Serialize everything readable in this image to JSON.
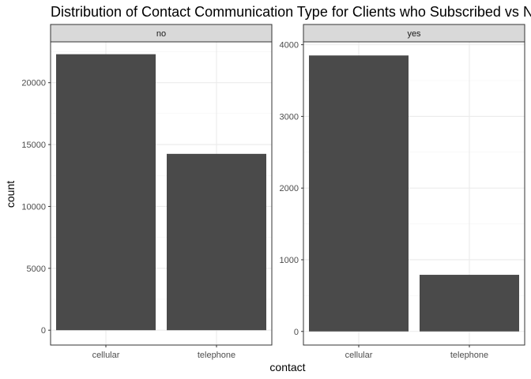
{
  "chart_data": {
    "type": "bar",
    "title": "Distribution of Contact Communication Type for Clients who Subscribed vs No",
    "xlabel": "contact",
    "ylabel": "count",
    "categories": [
      "cellular",
      "telephone"
    ],
    "bar_color": "#4a4a4a",
    "grid": true,
    "facets": [
      {
        "strip": "no",
        "values": [
          22300,
          14250
        ],
        "ylim": [
          -1200,
          23300
        ],
        "yticks": [
          0,
          5000,
          10000,
          15000,
          20000
        ],
        "ytick_labels": [
          "0",
          "5000",
          "10000",
          "15000",
          "20000"
        ]
      },
      {
        "strip": "yes",
        "values": [
          3850,
          790
        ],
        "ylim": [
          -190,
          4040
        ],
        "yticks": [
          0,
          1000,
          2000,
          3000,
          4000
        ],
        "ytick_labels": [
          "0",
          "1000",
          "2000",
          "3000",
          "4000"
        ]
      }
    ]
  }
}
